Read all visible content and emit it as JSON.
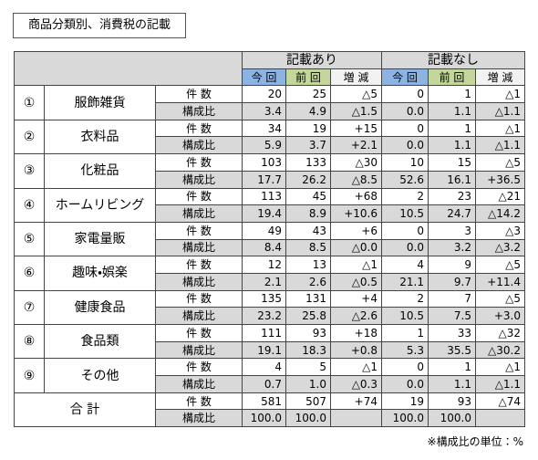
{
  "title": "商品分類別、消費税の記載",
  "table": {
    "group_headers": [
      "記載あり",
      "記載なし"
    ],
    "sub_headers": [
      "今 回",
      "前 回",
      "増 減"
    ],
    "row_labels": [
      "件 数",
      "構成比"
    ],
    "categories": [
      {
        "number": "①",
        "name": "服飾雑貨",
        "counts": [
          "20",
          "25",
          "△5",
          "0",
          "1",
          "△1"
        ],
        "ratios": [
          "3.4",
          "4.9",
          "△1.5",
          "0.0",
          "1.1",
          "△1.1"
        ]
      },
      {
        "number": "②",
        "name": "衣料品",
        "counts": [
          "34",
          "19",
          "+15",
          "0",
          "1",
          "△1"
        ],
        "ratios": [
          "5.9",
          "3.7",
          "+2.1",
          "0.0",
          "1.1",
          "△1.1"
        ]
      },
      {
        "number": "③",
        "name": "化粧品",
        "counts": [
          "103",
          "133",
          "△30",
          "10",
          "15",
          "△5"
        ],
        "ratios": [
          "17.7",
          "26.2",
          "△8.5",
          "52.6",
          "16.1",
          "+36.5"
        ]
      },
      {
        "number": "④",
        "name": "ホームリビング",
        "counts": [
          "113",
          "45",
          "+68",
          "2",
          "23",
          "△21"
        ],
        "ratios": [
          "19.4",
          "8.9",
          "+10.6",
          "10.5",
          "24.7",
          "△14.2"
        ]
      },
      {
        "number": "⑤",
        "name": "家電量販",
        "counts": [
          "49",
          "43",
          "+6",
          "0",
          "3",
          "△3"
        ],
        "ratios": [
          "8.4",
          "8.5",
          "△0.0",
          "0.0",
          "3.2",
          "△3.2"
        ]
      },
      {
        "number": "⑥",
        "name": "趣味・娯楽",
        "counts": [
          "12",
          "13",
          "△1",
          "4",
          "9",
          "△5"
        ],
        "ratios": [
          "2.1",
          "2.6",
          "△0.5",
          "21.1",
          "9.7",
          "+11.4"
        ]
      },
      {
        "number": "⑦",
        "name": "健康食品",
        "counts": [
          "135",
          "131",
          "+4",
          "2",
          "7",
          "△5"
        ],
        "ratios": [
          "23.2",
          "25.8",
          "△2.6",
          "10.5",
          "7.5",
          "+3.0"
        ]
      },
      {
        "number": "⑧",
        "name": "食品類",
        "counts": [
          "111",
          "93",
          "+18",
          "1",
          "33",
          "△32"
        ],
        "ratios": [
          "19.1",
          "18.3",
          "+0.8",
          "5.3",
          "35.5",
          "△30.2"
        ]
      },
      {
        "number": "⑨",
        "name": "その他",
        "counts": [
          "4",
          "5",
          "△1",
          "0",
          "1",
          "△1"
        ],
        "ratios": [
          "0.7",
          "1.0",
          "△0.3",
          "0.0",
          "1.1",
          "△1.1"
        ]
      }
    ],
    "total": {
      "name": "合 計",
      "counts": [
        "581",
        "507",
        "+74",
        "19",
        "93",
        "△74"
      ],
      "ratios": [
        "100.0",
        "100.0",
        null,
        "100.0",
        "100.0",
        null
      ]
    }
  },
  "footnote": "※構成比の単位：%"
}
